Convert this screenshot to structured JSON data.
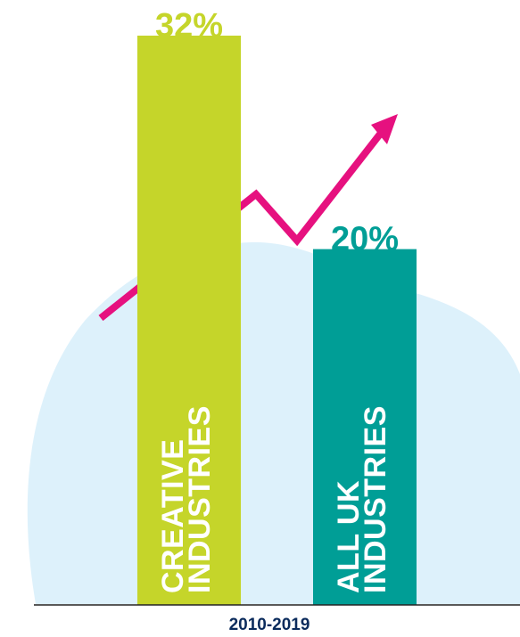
{
  "chart_data": {
    "type": "bar",
    "categories": [
      "CREATIVE INDUSTRIES",
      "ALL UK INDUSTRIES"
    ],
    "category_lines": [
      [
        "CREATIVE",
        "INDUSTRIES"
      ],
      [
        "ALL UK",
        "INDUSTRIES"
      ]
    ],
    "values": [
      32,
      20
    ],
    "value_labels": [
      "32%",
      "20%"
    ],
    "xlabel": "2010-2019",
    "ylabel": "",
    "ylim": [
      0,
      32
    ],
    "grid": false,
    "legend": "none"
  },
  "colors": {
    "creative_bar": "#C5D52A",
    "uk_bar": "#009E96",
    "trend_arrow": "#E6117F",
    "blob": "#DDF1FB",
    "period_text": "#0B2B5C",
    "baseline": "#222222"
  },
  "icons": {
    "trend": "trend-arrow-icon",
    "background": "blob-shape"
  }
}
